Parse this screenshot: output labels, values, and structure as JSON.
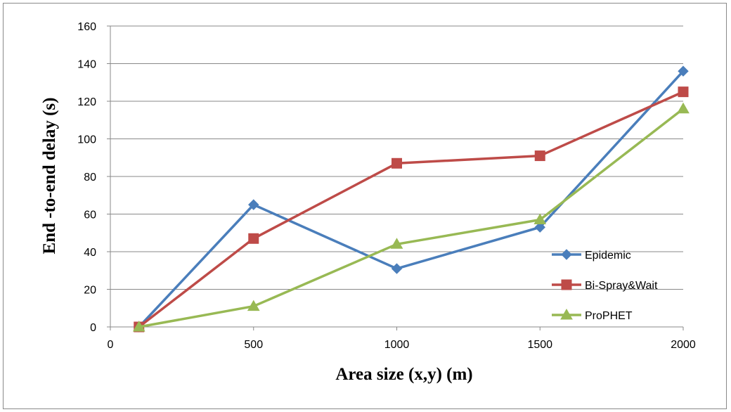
{
  "chart_data": {
    "type": "line",
    "title": "",
    "xlabel": "Area size (x,y) (m)",
    "ylabel": "End -to-end delay (s)",
    "xlim": [
      0,
      2000
    ],
    "ylim": [
      0,
      160
    ],
    "xticks": [
      0,
      500,
      1000,
      1500,
      2000
    ],
    "yticks": [
      0,
      20,
      40,
      60,
      80,
      100,
      120,
      140,
      160
    ],
    "grid": "horizontal",
    "legend_position": "bottom-right",
    "x": [
      100,
      500,
      1000,
      1500,
      2000
    ],
    "series": [
      {
        "name": "Epidemic",
        "values": [
          0,
          65,
          31,
          53,
          136
        ],
        "color": "#4a7ebb",
        "marker": "diamond"
      },
      {
        "name": "Bi-Spray&Wait",
        "values": [
          0,
          47,
          87,
          91,
          125
        ],
        "color": "#be4b48",
        "marker": "square"
      },
      {
        "name": "ProPHET",
        "values": [
          0,
          11,
          44,
          57,
          116
        ],
        "color": "#98b954",
        "marker": "triangle"
      }
    ]
  }
}
